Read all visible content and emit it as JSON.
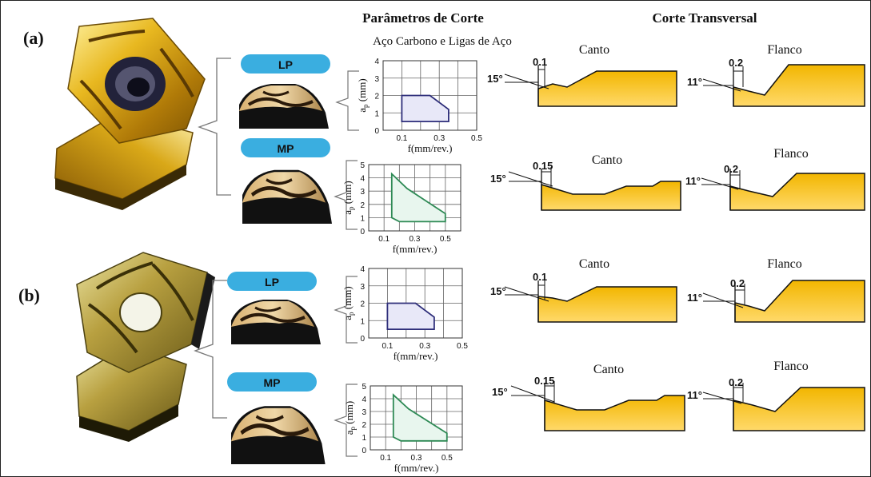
{
  "headers": {
    "parameters_title": "Parâmetros de Corte",
    "parameters_subtitle": "Aço Carbono e Ligas de Aço",
    "cross_section_title": "Corte Transversal"
  },
  "colors": {
    "pill": "#3aaee0",
    "gold": "#f2b600",
    "gold_light": "#ffd24a",
    "lp_outline": "#2e2e7a",
    "lp_fill": "#e8e8f8",
    "mp_outline": "#2e8a55",
    "mp_fill": "#e8f6ee",
    "line": "#111111"
  },
  "charts": {
    "ylabel": "ap (mm)",
    "ylabel_main": "a",
    "ylabel_sub": "p",
    "ylabel_unit": " (mm)",
    "xlabel": "f(mm/rev.)",
    "lp_xticks": [
      "0.1",
      "0.3",
      "0.5"
    ],
    "lp_yticks": [
      "0",
      "1",
      "2",
      "3",
      "4"
    ],
    "mp_xticks": [
      "0.1",
      "0.3",
      "0.5"
    ],
    "mp_yticks": [
      "0",
      "1",
      "2",
      "3",
      "4",
      "5"
    ]
  },
  "chart_data": [
    {
      "type": "area",
      "panel": "a",
      "label": "LP",
      "xlim": [
        0,
        0.5
      ],
      "ylim": [
        0,
        4
      ],
      "region": [
        [
          0.1,
          0.5
        ],
        [
          0.1,
          2.0
        ],
        [
          0.25,
          2.0
        ],
        [
          0.35,
          1.2
        ],
        [
          0.35,
          0.5
        ]
      ]
    },
    {
      "type": "area",
      "panel": "a",
      "label": "MP",
      "xlim": [
        0,
        0.6
      ],
      "ylim": [
        0,
        5
      ],
      "region": [
        [
          0.15,
          1.0
        ],
        [
          0.15,
          4.3
        ],
        [
          0.25,
          3.2
        ],
        [
          0.5,
          1.3
        ],
        [
          0.5,
          0.7
        ],
        [
          0.2,
          0.7
        ]
      ]
    },
    {
      "type": "area",
      "panel": "b",
      "label": "LP",
      "xlim": [
        0,
        0.5
      ],
      "ylim": [
        0,
        4
      ],
      "region": [
        [
          0.1,
          0.5
        ],
        [
          0.1,
          2.0
        ],
        [
          0.25,
          2.0
        ],
        [
          0.35,
          1.2
        ],
        [
          0.35,
          0.5
        ]
      ]
    },
    {
      "type": "area",
      "panel": "b",
      "label": "MP",
      "xlim": [
        0,
        0.6
      ],
      "ylim": [
        0,
        5
      ],
      "region": [
        [
          0.15,
          1.0
        ],
        [
          0.15,
          4.3
        ],
        [
          0.25,
          3.2
        ],
        [
          0.5,
          1.3
        ],
        [
          0.5,
          0.7
        ],
        [
          0.2,
          0.7
        ]
      ]
    }
  ],
  "panels": [
    {
      "label": "(a)",
      "rows": [
        {
          "pill": "LP",
          "corner": {
            "title": "Canto",
            "angle": "15°",
            "land": "0.1"
          },
          "flank": {
            "title": "Flanco",
            "angle": "11°",
            "land": "0.2"
          }
        },
        {
          "pill": "MP",
          "corner": {
            "title": "Canto",
            "angle": "15°",
            "land": "0.15"
          },
          "flank": {
            "title": "Flanco",
            "angle": "11°",
            "land": "0.2"
          }
        }
      ]
    },
    {
      "label": "(b)",
      "rows": [
        {
          "pill": "LP",
          "corner": {
            "title": "Canto",
            "angle": "15°",
            "land": "0.1"
          },
          "flank": {
            "title": "Flanco",
            "angle": "11°",
            "land": "0.2"
          }
        },
        {
          "pill": "MP",
          "corner": {
            "title": "Canto",
            "angle": "15°",
            "land": "0.15"
          },
          "flank": {
            "title": "Flanco",
            "angle": "11°",
            "land": "0.2"
          }
        }
      ]
    }
  ]
}
